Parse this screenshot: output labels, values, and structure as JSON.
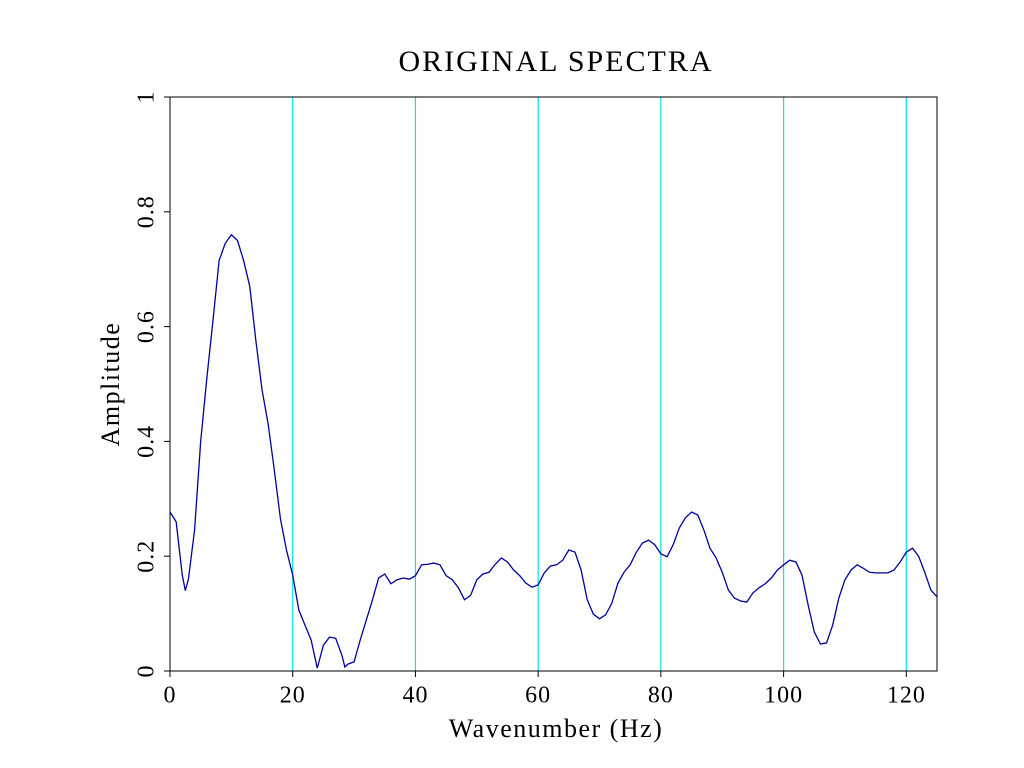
{
  "chart_data": {
    "type": "line",
    "title": "ORIGINAL SPECTRA",
    "x_label": "Wavenumber (Hz)",
    "y_label": "Amplitude",
    "xlim": [
      0,
      125
    ],
    "ylim": [
      0,
      1
    ],
    "xticks": [
      0,
      20,
      40,
      60,
      80,
      100,
      120
    ],
    "yticks": [
      0,
      0.2,
      0.4,
      0.6,
      0.8,
      1
    ],
    "grid": true,
    "grid_color": "#00e5e5",
    "x": [
      0,
      1,
      2,
      2.5,
      3,
      4,
      5,
      6,
      7,
      8,
      9,
      10,
      11,
      12,
      13,
      14,
      15,
      16,
      17,
      18,
      19,
      20,
      21,
      22,
      23,
      24,
      25,
      26,
      27,
      28,
      28.5,
      29,
      30,
      31,
      32,
      33,
      34,
      35,
      36,
      37,
      38,
      39,
      40,
      41,
      42,
      43,
      44,
      45,
      46,
      47,
      48,
      49,
      50,
      51,
      52,
      53,
      54,
      55,
      56,
      57,
      58,
      59,
      60,
      61,
      62,
      63,
      64,
      65,
      66,
      67,
      68,
      69,
      70,
      71,
      72,
      73,
      74,
      75,
      76,
      77,
      78,
      79,
      80,
      81,
      82,
      83,
      84,
      85,
      86,
      87,
      88,
      89,
      90,
      91,
      92,
      93,
      94,
      95,
      96,
      97,
      98,
      99,
      100,
      101,
      102,
      103,
      104,
      105,
      106,
      107,
      108,
      109,
      110,
      111,
      112,
      113,
      114,
      115,
      116,
      117,
      118,
      119,
      120,
      121,
      122,
      123,
      124,
      125
    ],
    "series": [
      {
        "color": "#0000a0",
        "values": [
          0.277,
          0.26,
          0.167,
          0.14,
          0.16,
          0.245,
          0.4,
          0.51,
          0.61,
          0.715,
          0.745,
          0.76,
          0.75,
          0.715,
          0.67,
          0.575,
          0.49,
          0.43,
          0.35,
          0.265,
          0.21,
          0.167,
          0.106,
          0.08,
          0.054,
          0.005,
          0.045,
          0.059,
          0.057,
          0.028,
          0.007,
          0.012,
          0.016,
          0.054,
          0.089,
          0.124,
          0.162,
          0.169,
          0.152,
          0.159,
          0.162,
          0.16,
          0.166,
          0.185,
          0.186,
          0.188,
          0.185,
          0.166,
          0.159,
          0.145,
          0.124,
          0.132,
          0.159,
          0.169,
          0.172,
          0.186,
          0.197,
          0.19,
          0.176,
          0.166,
          0.153,
          0.146,
          0.15,
          0.171,
          0.183,
          0.185,
          0.193,
          0.211,
          0.207,
          0.176,
          0.124,
          0.099,
          0.091,
          0.098,
          0.118,
          0.153,
          0.172,
          0.185,
          0.207,
          0.223,
          0.228,
          0.22,
          0.204,
          0.199,
          0.22,
          0.249,
          0.267,
          0.277,
          0.272,
          0.246,
          0.214,
          0.197,
          0.172,
          0.141,
          0.127,
          0.122,
          0.12,
          0.136,
          0.145,
          0.152,
          0.162,
          0.176,
          0.185,
          0.193,
          0.19,
          0.167,
          0.115,
          0.068,
          0.047,
          0.049,
          0.08,
          0.127,
          0.159,
          0.176,
          0.185,
          0.179,
          0.172,
          0.171,
          0.171,
          0.171,
          0.176,
          0.19,
          0.207,
          0.214,
          0.2,
          0.172,
          0.141,
          0.129
        ]
      }
    ]
  }
}
